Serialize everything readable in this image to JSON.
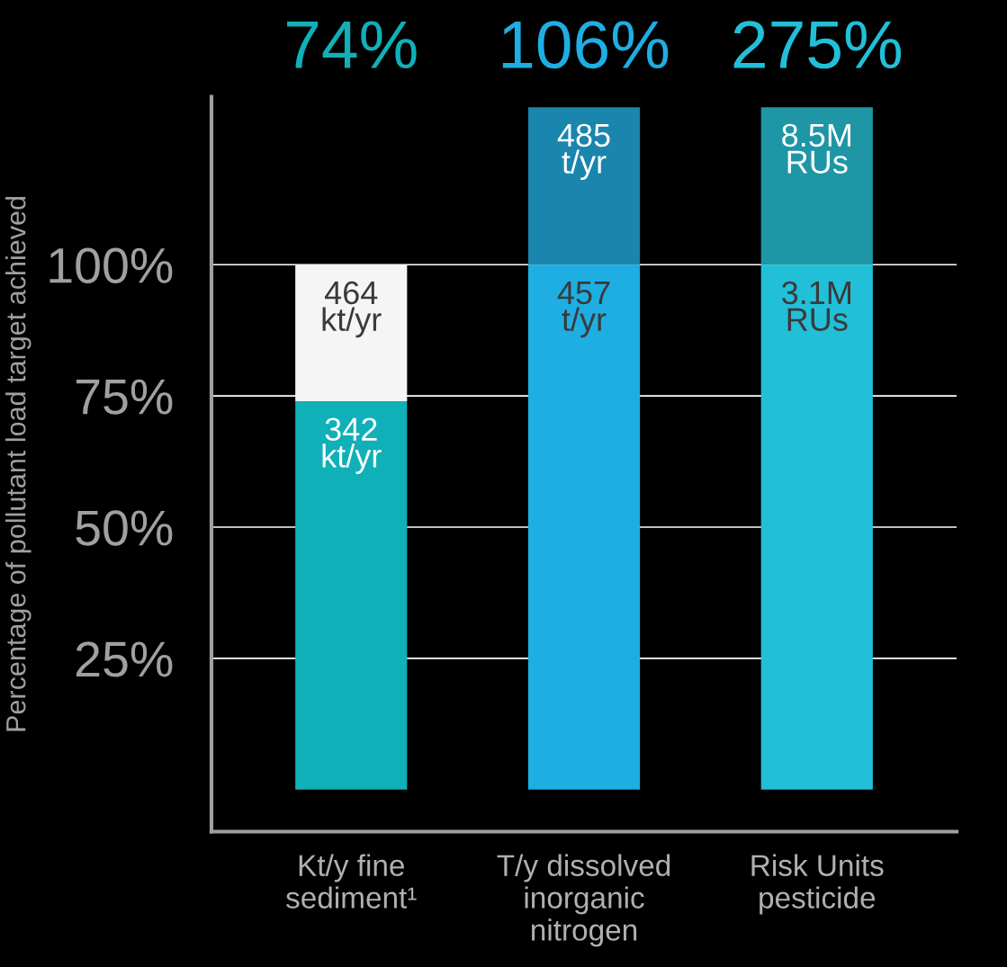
{
  "chart_data": {
    "type": "bar",
    "stacked": true,
    "ylabel": "Percentage of pollutant load target achieved",
    "categories": [
      "Kt/y fine\nsediment¹",
      "T/y dissolved\ninorganic\nnitrogen",
      "Risk Units\npesticide"
    ],
    "series": [
      {
        "colors": [
          "#10b0b8",
          "#1eaee2",
          "#22bfd8"
        ],
        "values": [
          74,
          100,
          100
        ]
      },
      {
        "colors": [
          "#f4f5f4",
          "#1a85ad",
          "#1e96a6"
        ],
        "values": [
          26,
          30,
          30
        ]
      }
    ],
    "annotations": [
      {
        "text": "342\nkt/yr",
        "x": "Kt/y fine\nsediment¹",
        "y": 74
      },
      {
        "text": "464\nkt/yr",
        "x": "Kt/y fine\nsediment¹",
        "y": 100
      },
      {
        "text": "457\nt/yr",
        "x": "T/y dissolved\ninorganic\nnitrogen",
        "y": 100
      },
      {
        "text": "485\nt/yr",
        "x": "T/y dissolved\ninorganic\nnitrogen",
        "y": 130
      },
      {
        "text": "3.1M\nRUs",
        "x": "Risk Units\npesticide",
        "y": 100
      },
      {
        "text": "8.5M\nRUs",
        "x": "Risk Units\npesticide",
        "y": 130
      },
      "74%",
      "106%",
      "275%"
    ],
    "ylim": [
      -8,
      132
    ],
    "yticks": [
      {
        "value": 25,
        "label": "25%"
      },
      {
        "value": 50,
        "label": "50%"
      },
      {
        "value": 75,
        "label": "75%"
      },
      {
        "value": 100,
        "label": "100%"
      }
    ],
    "grid": "y"
  }
}
